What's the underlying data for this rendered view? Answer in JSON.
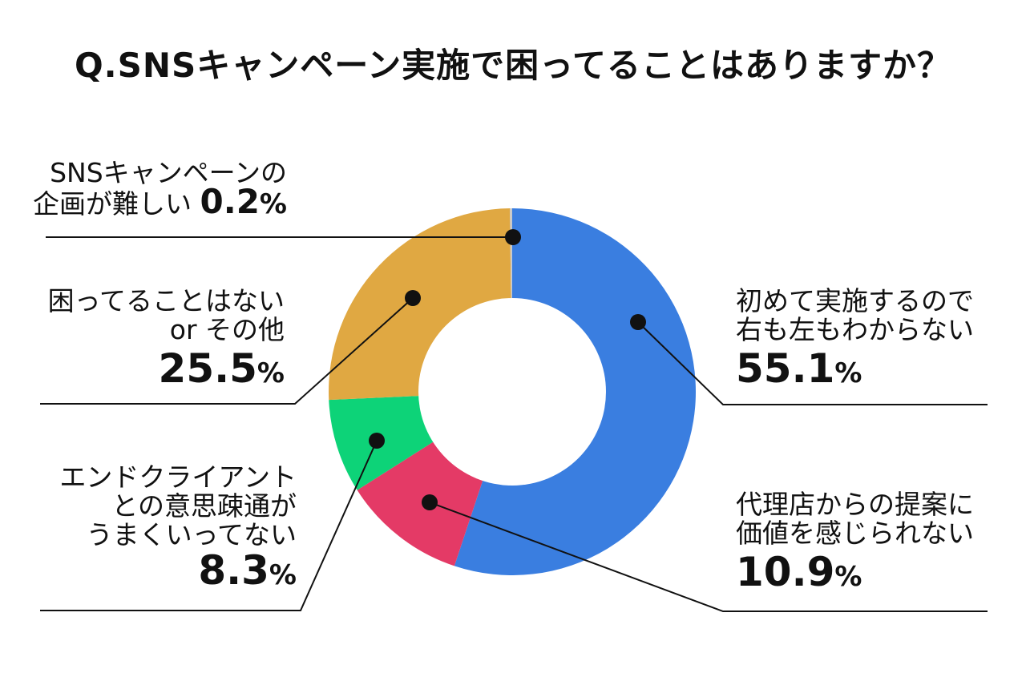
{
  "title": "Q.SNSキャンペーン実施で困ってることはありますか？",
  "chart_data": {
    "type": "pie",
    "variant": "donut",
    "title": "Q.SNSキャンペーン実施で困ってることはありますか？",
    "unit": "%",
    "slices": [
      {
        "label": "初めて実施するので右も左もわからない",
        "lines": [
          "初めて実施するので",
          "右も左もわからない"
        ],
        "value": 55.1,
        "display": "55.1",
        "color": "#3a7ee0"
      },
      {
        "label": "代理店からの提案に価値を感じられない",
        "lines": [
          "代理店からの提案に",
          "価値を感じられない"
        ],
        "value": 10.9,
        "display": "10.9",
        "color": "#e43a66"
      },
      {
        "label": "エンドクライアントとの意思疎通がうまくいってない",
        "lines": [
          "エンドクライアント",
          "との意思疎通が",
          "うまくいってない"
        ],
        "value": 8.3,
        "display": "8.3",
        "color": "#0dd378"
      },
      {
        "label": "困ってることはない or その他",
        "lines": [
          "困ってることはない",
          "or その他"
        ],
        "value": 25.5,
        "display": "25.5",
        "color": "#e0a842"
      },
      {
        "label": "SNSキャンペーンの企画が難しい",
        "lines": [
          "SNSキャンペーンの",
          "企画が難しい"
        ],
        "value": 0.2,
        "display": "0.2",
        "color": "#c9c9c9"
      }
    ]
  }
}
